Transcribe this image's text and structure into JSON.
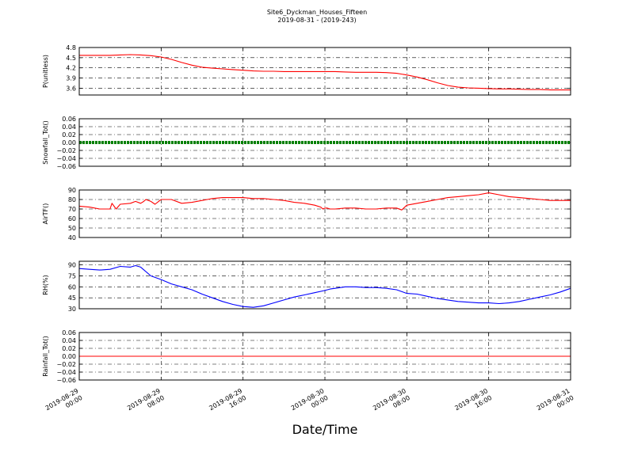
{
  "title": "Site6_Dyckman_Houses_Fifteen",
  "subtitle": "2019-08-31 - (2019-243)",
  "xlabel": "Date/Time",
  "x_ticks": [
    "2019-08-29 00:00",
    "2019-08-29 08:00",
    "2019-08-29 16:00",
    "2019-08-30 00:00",
    "2019-08-30 08:00",
    "2019-08-30 16:00",
    "2019-08-31 00:00"
  ],
  "colors": {
    "p": "#ff0000",
    "snow": "#008000",
    "air": "#ff0000",
    "rh": "#0000ff",
    "rain": "#ff0000"
  },
  "chart_data": [
    {
      "type": "line",
      "ylabel": "P(unitless)",
      "ylim": [
        3.4,
        4.8
      ],
      "yticks": [
        "4.8",
        "4.5",
        "4.2",
        "3.9",
        "3.6"
      ],
      "ytick_values": [
        4.8,
        4.5,
        4.2,
        3.9,
        3.6
      ],
      "grid": true,
      "series": [
        {
          "color": "#ff0000",
          "x": [
            0,
            1,
            2,
            3,
            4,
            5,
            6,
            7,
            8,
            9,
            10,
            11,
            12,
            13,
            14,
            15,
            16,
            17,
            18,
            19,
            20,
            21,
            22,
            23,
            24,
            25,
            26,
            27,
            28,
            29,
            30,
            31,
            32,
            33,
            34,
            35,
            36,
            37,
            38,
            39,
            40,
            41,
            42,
            43,
            44,
            45,
            46,
            47,
            48
          ],
          "values": [
            4.57,
            4.57,
            4.57,
            4.57,
            4.58,
            4.59,
            4.58,
            4.56,
            4.52,
            4.45,
            4.36,
            4.28,
            4.22,
            4.19,
            4.17,
            4.15,
            4.13,
            4.11,
            4.1,
            4.1,
            4.09,
            4.09,
            4.09,
            4.09,
            4.09,
            4.09,
            4.08,
            4.07,
            4.07,
            4.07,
            4.06,
            4.04,
            3.99,
            3.93,
            3.85,
            3.76,
            3.68,
            3.63,
            3.61,
            3.6,
            3.59,
            3.58,
            3.58,
            3.57,
            3.56,
            3.56,
            3.55,
            3.55,
            3.55
          ]
        }
      ]
    },
    {
      "type": "line",
      "ylabel": "Snowfall_Tot()",
      "ylim": [
        -0.06,
        0.06
      ],
      "yticks": [
        "0.06",
        "0.04",
        "0.02",
        "0.00",
        "−0.02",
        "−0.04",
        "−0.06"
      ],
      "ytick_values": [
        0.06,
        0.04,
        0.02,
        0.0,
        -0.02,
        -0.04,
        -0.06
      ],
      "grid": true,
      "series": [
        {
          "color": "#008000",
          "marker": "dots",
          "x": [
            0,
            48
          ],
          "values": [
            0,
            0
          ]
        }
      ]
    },
    {
      "type": "line",
      "ylabel": "AirTF()",
      "ylim": [
        40,
        90
      ],
      "yticks": [
        "90",
        "80",
        "70",
        "60",
        "50",
        "40"
      ],
      "ytick_values": [
        90,
        80,
        70,
        60,
        50,
        40
      ],
      "grid": true,
      "series": [
        {
          "color": "#ff0000",
          "x": [
            0,
            1,
            1.5,
            2,
            3,
            3.2,
            3.6,
            4,
            5,
            5.5,
            6,
            6.3,
            6.5,
            7,
            7.4,
            8,
            9,
            10,
            11,
            12,
            12.5,
            13,
            14,
            15,
            16,
            17,
            18,
            19,
            20,
            21,
            22,
            23,
            23.6,
            23.8,
            24,
            24.2,
            24.5,
            25,
            26,
            27,
            28,
            29,
            30,
            31,
            31.5,
            32,
            33,
            34,
            35,
            36,
            37,
            38,
            39,
            40,
            41,
            42,
            43,
            44,
            45,
            46,
            47,
            48
          ],
          "values": [
            73,
            72,
            71,
            70,
            70,
            76,
            70,
            75,
            76,
            78,
            76,
            78,
            80,
            78,
            75,
            80,
            80,
            76,
            77,
            79,
            80,
            81,
            82,
            82,
            82,
            81,
            81,
            80,
            79,
            77,
            76,
            74,
            72,
            70,
            71,
            71,
            70,
            70,
            71,
            71,
            70,
            70,
            71,
            71,
            69,
            74,
            76,
            78,
            80,
            82,
            83,
            84,
            85,
            87,
            85,
            83,
            82,
            81,
            80,
            79,
            79,
            79
          ]
        }
      ]
    },
    {
      "type": "line",
      "ylabel": "RH(%)",
      "ylim": [
        30,
        95
      ],
      "yticks": [
        "90",
        "75",
        "60",
        "45",
        "30"
      ],
      "ytick_values": [
        90,
        75,
        60,
        45,
        30
      ],
      "grid": true,
      "series": [
        {
          "color": "#0000ff",
          "x": [
            0,
            1,
            2,
            3,
            4,
            5,
            5.5,
            6,
            7,
            8,
            9,
            10,
            11,
            12,
            13,
            14,
            15,
            16,
            17,
            18,
            19,
            20,
            21,
            22,
            23,
            24,
            24.5,
            25,
            26,
            27,
            28,
            29,
            30,
            31,
            32,
            33,
            34,
            35,
            36,
            37,
            38,
            39,
            40,
            41,
            42,
            43,
            44,
            45,
            46,
            47,
            48
          ],
          "values": [
            85,
            84,
            83,
            84,
            88,
            87,
            89,
            87,
            75,
            70,
            64,
            60,
            56,
            50,
            45,
            40,
            36,
            33,
            32,
            34,
            38,
            42,
            46,
            49,
            52,
            55,
            57,
            58,
            60,
            60,
            59,
            59,
            58,
            56,
            51,
            50,
            47,
            44,
            42,
            40,
            39,
            38,
            38,
            37,
            38,
            40,
            43,
            46,
            49,
            53,
            58
          ]
        }
      ]
    },
    {
      "type": "line",
      "ylabel": "Rainfall_Tot()",
      "ylim": [
        -0.06,
        0.06
      ],
      "yticks": [
        "0.06",
        "0.04",
        "0.02",
        "0.00",
        "−0.02",
        "−0.04",
        "−0.06"
      ],
      "ytick_values": [
        0.06,
        0.04,
        0.02,
        0.0,
        -0.02,
        -0.04,
        -0.06
      ],
      "grid": true,
      "series": [
        {
          "color": "#ff0000",
          "x": [
            0,
            48
          ],
          "values": [
            0,
            0
          ]
        }
      ]
    }
  ]
}
